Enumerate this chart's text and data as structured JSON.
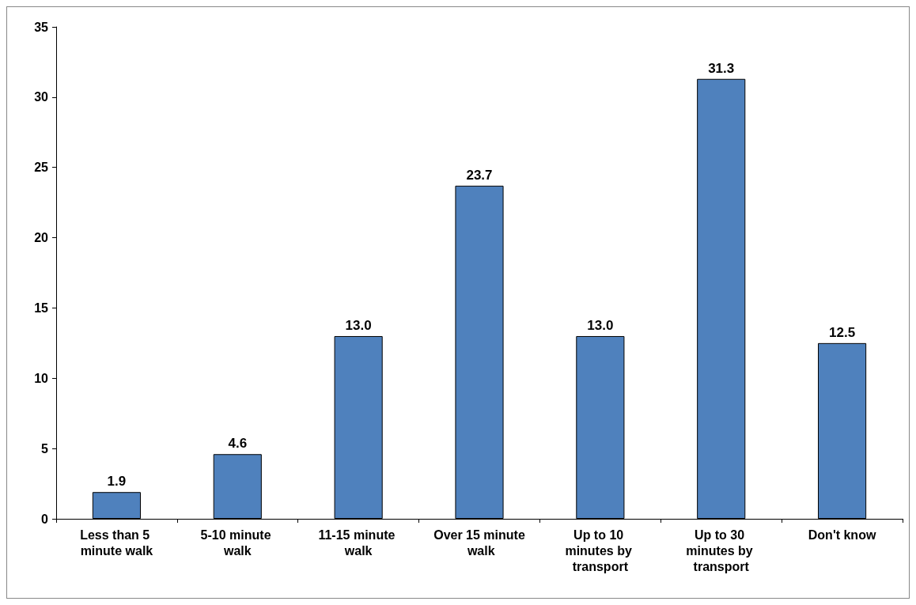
{
  "chart_data": {
    "type": "bar",
    "categories": [
      "Less than 5 minute walk",
      "5-10 minute walk",
      "11-15 minute walk",
      "Over 15 minute walk",
      "Up to 10 minutes by transport",
      "Up to 30 minutes by transport",
      "Don't know"
    ],
    "values": [
      1.9,
      4.6,
      13.0,
      23.7,
      13.0,
      31.3,
      12.5
    ],
    "value_labels": [
      "1.9",
      "4.6",
      "13.0",
      "23.7",
      "13.0",
      "31.3",
      "12.5"
    ],
    "color": "#4f81bd",
    "ylim": [
      0,
      35
    ],
    "yticks": [
      0,
      5,
      10,
      15,
      20,
      25,
      30,
      35
    ],
    "grid": false
  }
}
